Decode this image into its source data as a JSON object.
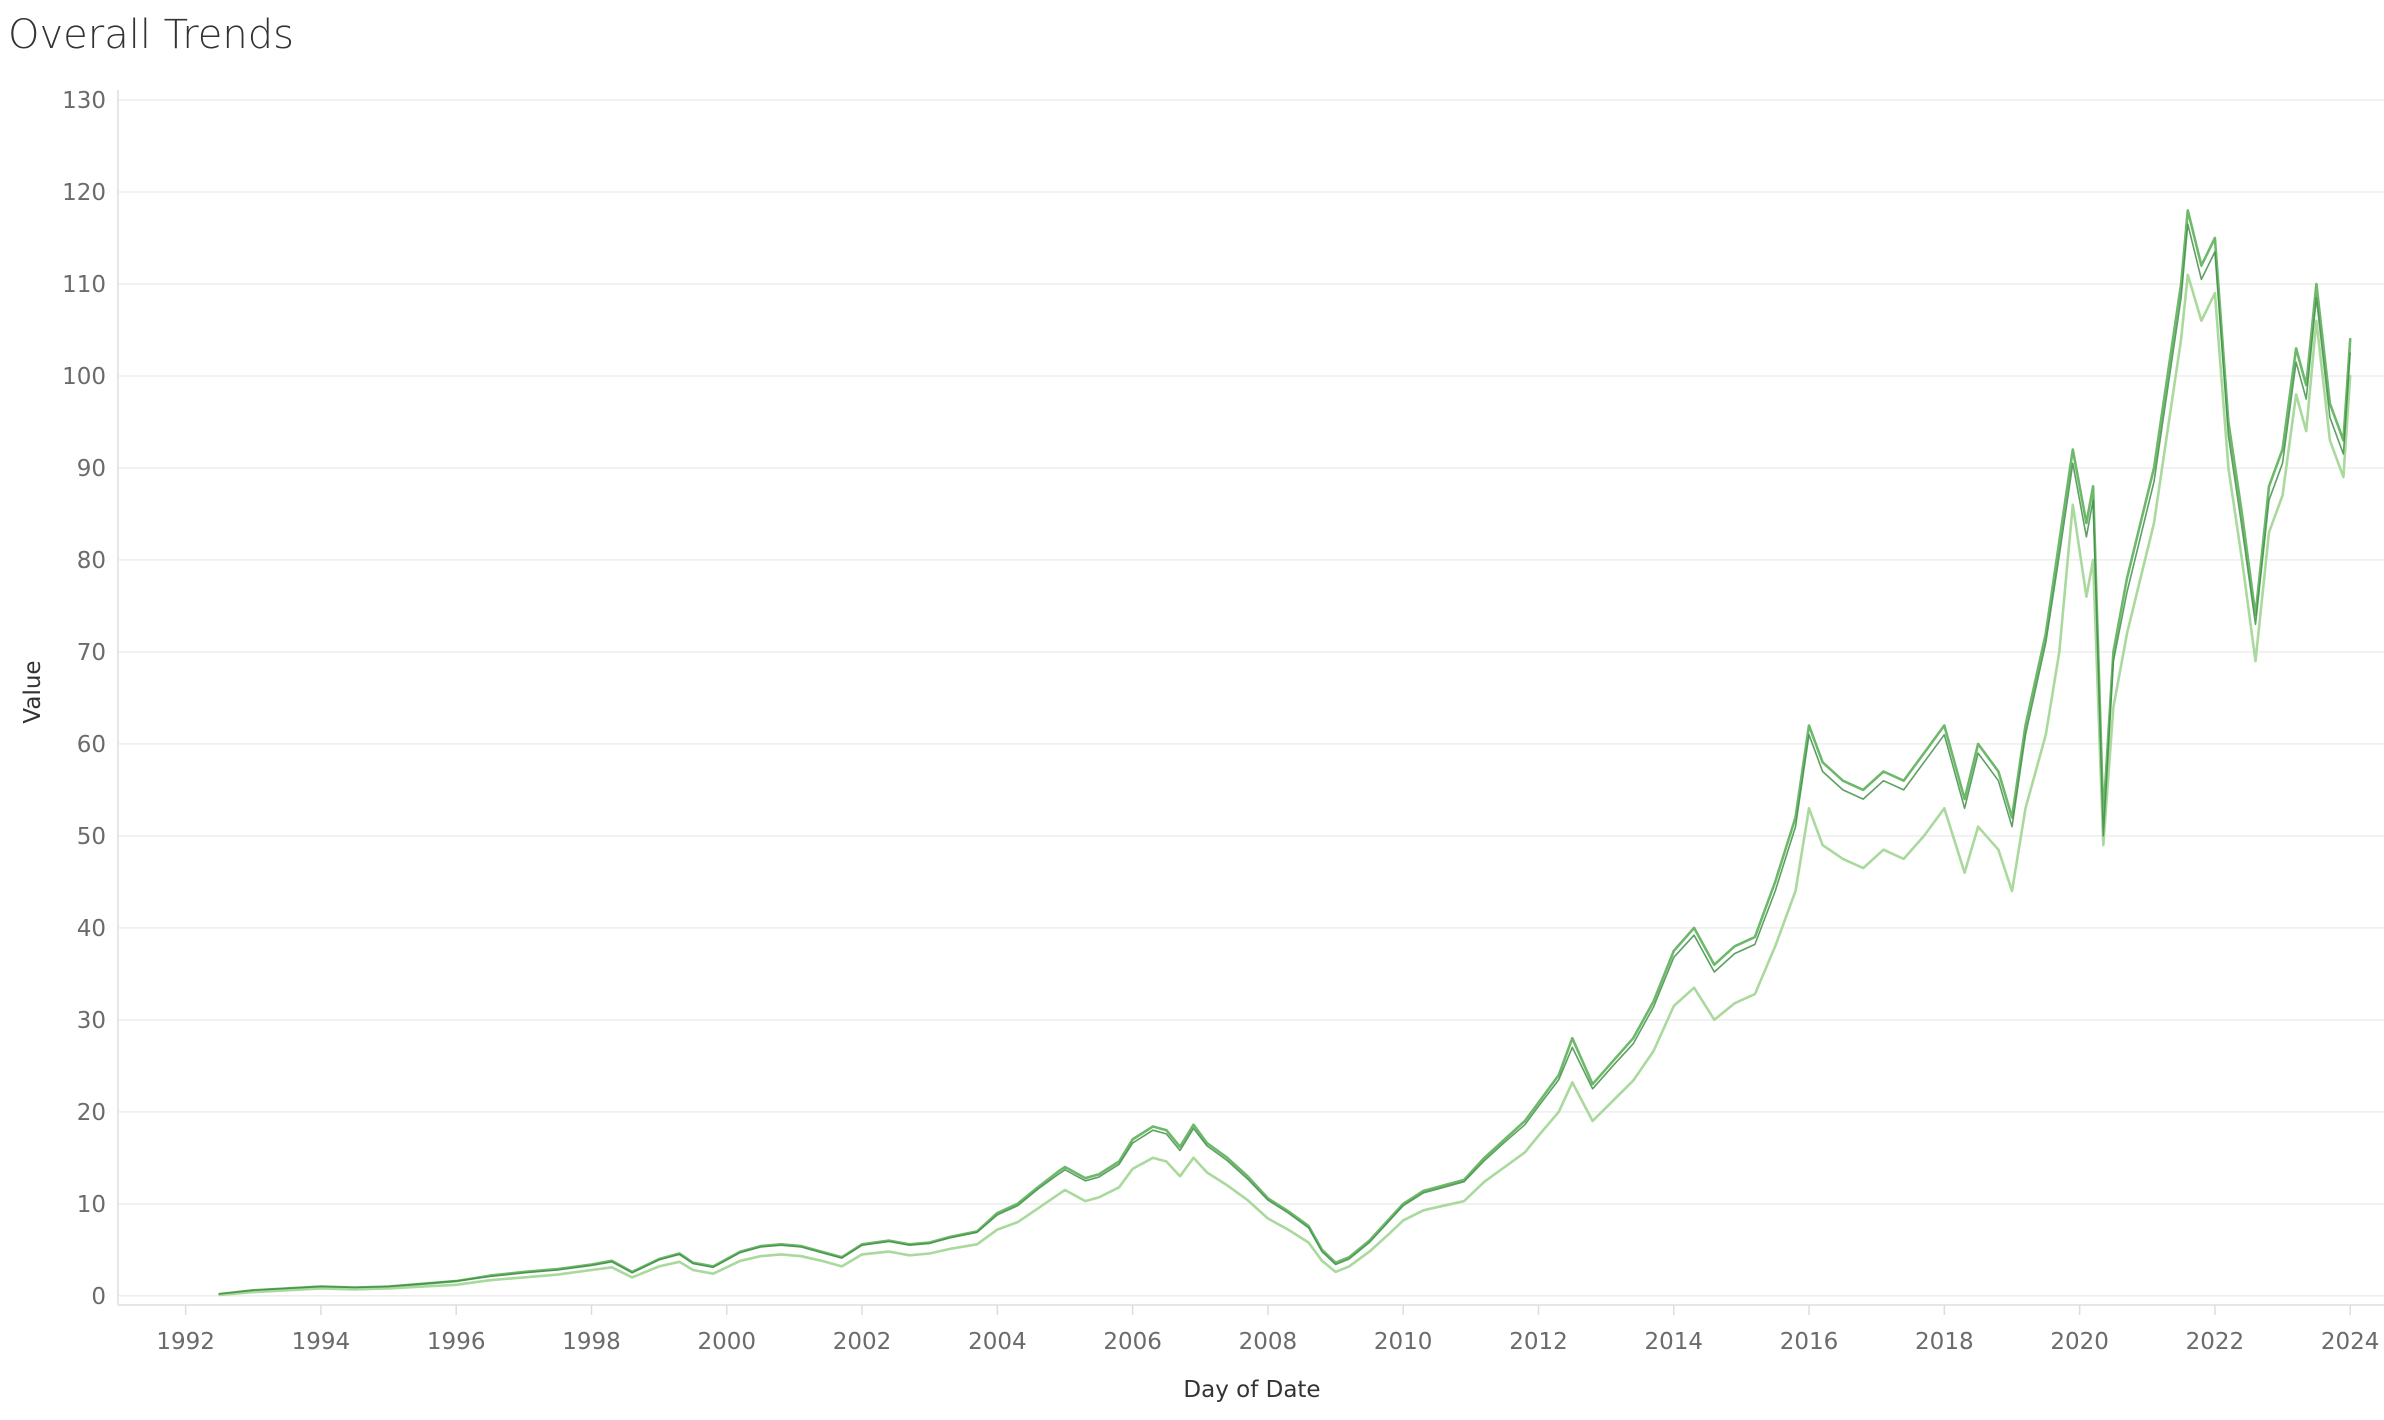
{
  "chart_data": {
    "type": "line",
    "title": "Overall Trends",
    "xlabel": "Day of Date",
    "ylabel": "Value",
    "x_ticks": [
      "1992",
      "1994",
      "1996",
      "1998",
      "2000",
      "2002",
      "2004",
      "2006",
      "2008",
      "2010",
      "2012",
      "2014",
      "2016",
      "2018",
      "2020",
      "2022",
      "2024"
    ],
    "y_ticks": [
      0,
      10,
      20,
      30,
      40,
      50,
      60,
      70,
      80,
      90,
      100,
      110,
      120,
      130
    ],
    "xlim": [
      1991.0,
      2024.5
    ],
    "ylim": [
      -1,
      130
    ],
    "grid": true,
    "legend": "none",
    "colors": {
      "dark": "#3f8f46",
      "mid": "#6db86a",
      "light": "#a9d99c"
    },
    "series": [
      {
        "color": "mid",
        "x": [
          1992.5,
          1993.0,
          1993.5,
          1994.0,
          1994.5,
          1995.0,
          1995.5,
          1996.0,
          1996.5,
          1997.0,
          1997.5,
          1998.0,
          1998.3,
          1998.6,
          1999.0,
          1999.3,
          1999.5,
          1999.8,
          2000.2,
          2000.5,
          2000.8,
          2001.1,
          2001.4,
          2001.7,
          2002.0,
          2002.4,
          2002.7,
          2003.0,
          2003.3,
          2003.7,
          2004.0,
          2004.3,
          2004.6,
          2004.9,
          2005.0,
          2005.3,
          2005.5,
          2005.8,
          2006.0,
          2006.3,
          2006.5,
          2006.7,
          2006.9,
          2007.1,
          2007.4,
          2007.7,
          2008.0,
          2008.3,
          2008.6,
          2008.8,
          2009.0,
          2009.2,
          2009.5,
          2009.8,
          2010.0,
          2010.3,
          2010.6,
          2010.9,
          2011.2,
          2011.5,
          2011.8,
          2012.0,
          2012.3,
          2012.5,
          2012.8,
          2013.1,
          2013.4,
          2013.7,
          2014.0,
          2014.3,
          2014.6,
          2014.9,
          2015.2,
          2015.5,
          2015.8,
          2016.0,
          2016.2,
          2016.5,
          2016.8,
          2017.1,
          2017.4,
          2017.7,
          2018.0,
          2018.3,
          2018.5,
          2018.8,
          2019.0,
          2019.2,
          2019.5,
          2019.7,
          2019.9,
          2020.1,
          2020.2,
          2020.35,
          2020.5,
          2020.7,
          2020.9,
          2021.1,
          2021.3,
          2021.5,
          2021.6,
          2021.8,
          2022.0,
          2022.2,
          2022.4,
          2022.6,
          2022.8,
          2023.0,
          2023.2,
          2023.35,
          2023.5,
          2023.7,
          2023.9,
          2024.0
        ],
        "y": [
          0.2,
          0.6,
          0.8,
          1.0,
          0.9,
          1.0,
          1.3,
          1.6,
          2.2,
          2.6,
          2.9,
          3.4,
          3.8,
          2.6,
          4.0,
          4.6,
          3.6,
          3.2,
          4.8,
          5.4,
          5.6,
          5.4,
          4.8,
          4.2,
          5.6,
          6.0,
          5.6,
          5.8,
          6.4,
          7.0,
          9.0,
          10.0,
          11.8,
          13.5,
          14.0,
          12.8,
          13.2,
          14.6,
          17.0,
          18.4,
          18.0,
          16.2,
          18.6,
          16.6,
          15.0,
          13.0,
          10.6,
          9.2,
          7.6,
          5.0,
          3.6,
          4.2,
          6.0,
          8.4,
          10.0,
          11.4,
          12.0,
          12.6,
          15.0,
          17.0,
          19.0,
          21.0,
          24.0,
          28.0,
          23.0,
          25.5,
          28.0,
          32.0,
          37.5,
          40.0,
          36.0,
          38.0,
          39.0,
          45.0,
          52.0,
          62.0,
          58.0,
          56.0,
          55.0,
          57.0,
          56.0,
          59.0,
          62.0,
          54.0,
          60.0,
          57.0,
          52.0,
          62.0,
          72.0,
          82.0,
          92.0,
          84.0,
          88.0,
          52.0,
          70.0,
          78.0,
          84.0,
          90.0,
          100.0,
          110.0,
          118.0,
          112.0,
          115.0,
          95.0,
          85.0,
          74.0,
          88.0,
          92.0,
          103.0,
          99.0,
          110.0,
          97.0,
          93.0,
          104.0
        ]
      },
      {
        "color": "light",
        "x": [
          1992.5,
          1993.0,
          1993.5,
          1994.0,
          1994.5,
          1995.0,
          1995.5,
          1996.0,
          1996.5,
          1997.0,
          1997.5,
          1998.0,
          1998.3,
          1998.6,
          1999.0,
          1999.3,
          1999.5,
          1999.8,
          2000.2,
          2000.5,
          2000.8,
          2001.1,
          2001.4,
          2001.7,
          2002.0,
          2002.4,
          2002.7,
          2003.0,
          2003.3,
          2003.7,
          2004.0,
          2004.3,
          2004.6,
          2004.9,
          2005.0,
          2005.3,
          2005.5,
          2005.8,
          2006.0,
          2006.3,
          2006.5,
          2006.7,
          2006.9,
          2007.1,
          2007.4,
          2007.7,
          2008.0,
          2008.3,
          2008.6,
          2008.8,
          2009.0,
          2009.2,
          2009.5,
          2009.8,
          2010.0,
          2010.3,
          2010.6,
          2010.9,
          2011.2,
          2011.5,
          2011.8,
          2012.0,
          2012.3,
          2012.5,
          2012.8,
          2013.1,
          2013.4,
          2013.7,
          2014.0,
          2014.3,
          2014.6,
          2014.9,
          2015.2,
          2015.5,
          2015.8,
          2016.0,
          2016.2,
          2016.5,
          2016.8,
          2017.1,
          2017.4,
          2017.7,
          2018.0,
          2018.3,
          2018.5,
          2018.8,
          2019.0,
          2019.2,
          2019.5,
          2019.7,
          2019.9,
          2020.1,
          2020.2,
          2020.35,
          2020.5,
          2020.7,
          2020.9,
          2021.1,
          2021.3,
          2021.5,
          2021.6,
          2021.8,
          2022.0,
          2022.2,
          2022.4,
          2022.6,
          2022.8,
          2023.0,
          2023.2,
          2023.35,
          2023.5,
          2023.7,
          2023.9,
          2024.0
        ],
        "y": [
          0.1,
          0.4,
          0.6,
          0.8,
          0.7,
          0.8,
          1.0,
          1.2,
          1.7,
          2.0,
          2.3,
          2.8,
          3.1,
          2.0,
          3.2,
          3.7,
          2.8,
          2.4,
          3.8,
          4.3,
          4.5,
          4.3,
          3.8,
          3.2,
          4.5,
          4.8,
          4.4,
          4.6,
          5.1,
          5.6,
          7.2,
          8.0,
          9.5,
          11.0,
          11.5,
          10.3,
          10.7,
          11.8,
          13.8,
          15.0,
          14.6,
          13.0,
          15.0,
          13.4,
          12.0,
          10.4,
          8.4,
          7.2,
          5.8,
          3.8,
          2.6,
          3.2,
          4.8,
          6.8,
          8.2,
          9.3,
          9.8,
          10.3,
          12.4,
          14.0,
          15.6,
          17.4,
          20.0,
          23.2,
          19.0,
          21.2,
          23.4,
          26.6,
          31.5,
          33.5,
          30.0,
          31.8,
          32.8,
          38.0,
          44.0,
          53.0,
          49.0,
          47.5,
          46.5,
          48.5,
          47.5,
          50.0,
          53.0,
          46.0,
          51.0,
          48.5,
          44.0,
          53.0,
          61.0,
          70.0,
          86.0,
          76.0,
          80.0,
          49.0,
          64.0,
          72.0,
          78.0,
          84.0,
          94.0,
          104.0,
          111.0,
          106.0,
          109.0,
          90.0,
          80.0,
          69.0,
          83.0,
          87.0,
          98.0,
          94.0,
          106.0,
          93.0,
          89.0,
          100.0
        ]
      },
      {
        "color": "dark",
        "x": [
          1992.5,
          1993.0,
          1993.5,
          1994.0,
          1994.5,
          1995.0,
          1995.5,
          1996.0,
          1996.5,
          1997.0,
          1997.5,
          1998.0,
          1998.3,
          1998.6,
          1999.0,
          1999.3,
          1999.5,
          1999.8,
          2000.2,
          2000.5,
          2000.8,
          2001.1,
          2001.4,
          2001.7,
          2002.0,
          2002.4,
          2002.7,
          2003.0,
          2003.3,
          2003.7,
          2004.0,
          2004.3,
          2004.6,
          2004.9,
          2005.0,
          2005.3,
          2005.5,
          2005.8,
          2006.0,
          2006.3,
          2006.5,
          2006.7,
          2006.9,
          2007.1,
          2007.4,
          2007.7,
          2008.0,
          2008.3,
          2008.6,
          2008.8,
          2009.0,
          2009.2,
          2009.5,
          2009.8,
          2010.0,
          2010.3,
          2010.6,
          2010.9,
          2011.2,
          2011.5,
          2011.8,
          2012.0,
          2012.3,
          2012.5,
          2012.8,
          2013.1,
          2013.4,
          2013.7,
          2014.0,
          2014.3,
          2014.6,
          2014.9,
          2015.2,
          2015.5,
          2015.8,
          2016.0,
          2016.2,
          2016.5,
          2016.8,
          2017.1,
          2017.4,
          2017.7,
          2018.0,
          2018.3,
          2018.5,
          2018.8,
          2019.0,
          2019.2,
          2019.5,
          2019.7,
          2019.9,
          2020.1,
          2020.2,
          2020.35,
          2020.5,
          2020.7,
          2020.9,
          2021.1,
          2021.3,
          2021.5,
          2021.6,
          2021.8,
          2022.0,
          2022.2,
          2022.4,
          2022.6,
          2022.8,
          2023.0,
          2023.2,
          2023.35,
          2023.5,
          2023.7,
          2023.9,
          2024.0
        ],
        "y": [
          0.2,
          0.6,
          0.8,
          1.0,
          0.9,
          1.0,
          1.3,
          1.6,
          2.1,
          2.5,
          2.8,
          3.3,
          3.7,
          2.5,
          3.9,
          4.5,
          3.5,
          3.1,
          4.7,
          5.3,
          5.5,
          5.3,
          4.7,
          4.1,
          5.5,
          5.9,
          5.5,
          5.7,
          6.3,
          6.9,
          8.8,
          9.8,
          11.6,
          13.2,
          13.7,
          12.5,
          12.9,
          14.3,
          16.6,
          18.0,
          17.6,
          15.8,
          18.2,
          16.3,
          14.7,
          12.7,
          10.4,
          9.0,
          7.4,
          4.8,
          3.4,
          4.0,
          5.8,
          8.2,
          9.8,
          11.2,
          11.8,
          12.4,
          14.7,
          16.7,
          18.6,
          20.6,
          23.5,
          27.0,
          22.5,
          25.0,
          27.4,
          31.4,
          36.8,
          39.2,
          35.2,
          37.2,
          38.2,
          44.0,
          51.0,
          61.0,
          57.0,
          55.0,
          54.0,
          56.0,
          55.0,
          58.0,
          61.0,
          53.0,
          59.0,
          56.0,
          51.0,
          61.0,
          71.0,
          80.5,
          90.5,
          82.5,
          86.5,
          50.0,
          69.0,
          76.5,
          82.5,
          88.5,
          98.5,
          108.5,
          116.5,
          110.5,
          113.5,
          93.5,
          83.5,
          73.0,
          86.5,
          90.5,
          101.5,
          97.5,
          108.5,
          95.5,
          91.5,
          102.5
        ]
      }
    ]
  }
}
